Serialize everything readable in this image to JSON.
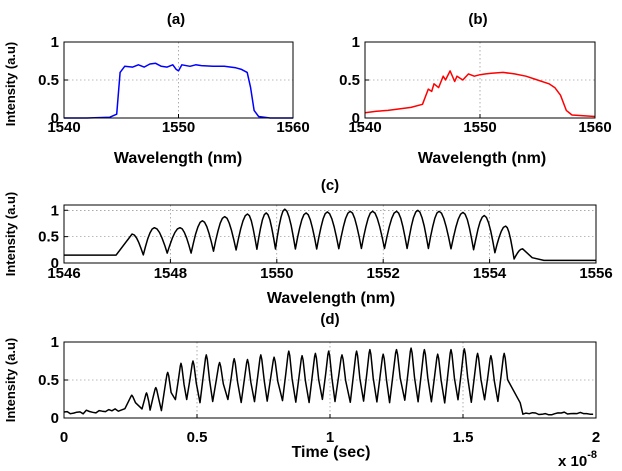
{
  "chart_data": [
    {
      "type": "line",
      "title": "(a)",
      "xlabel": "Wavelength (nm)",
      "ylabel": "Intensity (a.u)",
      "xlim": [
        1540,
        1560
      ],
      "ylim": [
        0,
        1
      ],
      "xticks": [
        "1540",
        "1550",
        "1560"
      ],
      "yticks": [
        "0",
        "0.5",
        "1"
      ],
      "grid": true,
      "color": "#0000ff",
      "series": [
        {
          "x": [
            1540,
            1542,
            1544,
            1544.6,
            1544.9,
            1545.3,
            1546,
            1546.5,
            1547,
            1547.5,
            1548,
            1548.5,
            1549,
            1549.5,
            1549.8,
            1550,
            1550.3,
            1551,
            1551.5,
            1552,
            1553,
            1554,
            1555,
            1555.5,
            1556,
            1556.3,
            1556.6,
            1557,
            1558,
            1560
          ],
          "y": [
            0,
            0,
            0.01,
            0.05,
            0.6,
            0.68,
            0.67,
            0.7,
            0.67,
            0.71,
            0.72,
            0.68,
            0.67,
            0.7,
            0.64,
            0.62,
            0.7,
            0.68,
            0.7,
            0.69,
            0.68,
            0.68,
            0.66,
            0.64,
            0.6,
            0.4,
            0.1,
            0.02,
            0,
            0
          ]
        }
      ]
    },
    {
      "type": "line",
      "title": "(b)",
      "xlabel": "Wavelength (nm)",
      "ylabel": "",
      "xlim": [
        1540,
        1560
      ],
      "ylim": [
        0,
        1
      ],
      "xticks": [
        "1540",
        "1550",
        "1560"
      ],
      "yticks": [
        "0",
        "0.5",
        "1"
      ],
      "grid": true,
      "color": "#ff0000",
      "series": [
        {
          "x": [
            1540,
            1541,
            1542,
            1543,
            1544,
            1545,
            1545.5,
            1545.8,
            1546,
            1546.4,
            1546.8,
            1547,
            1547.4,
            1547.8,
            1548,
            1548.5,
            1549,
            1549.5,
            1550,
            1550.5,
            1551,
            1552,
            1553,
            1554,
            1555,
            1556,
            1556.5,
            1557,
            1557.5,
            1558,
            1560
          ],
          "y": [
            0.07,
            0.09,
            0.1,
            0.12,
            0.14,
            0.18,
            0.38,
            0.35,
            0.45,
            0.4,
            0.55,
            0.5,
            0.62,
            0.48,
            0.55,
            0.5,
            0.58,
            0.55,
            0.57,
            0.58,
            0.59,
            0.6,
            0.58,
            0.55,
            0.5,
            0.45,
            0.4,
            0.3,
            0.1,
            0.04,
            0.02
          ]
        }
      ]
    },
    {
      "type": "line",
      "title": "(c)",
      "xlabel": "Wavelength (nm)",
      "ylabel": "Intensity (a.u)",
      "xlim": [
        1546,
        1556
      ],
      "ylim": [
        0,
        1.1
      ],
      "xticks": [
        "1546",
        "1548",
        "1550",
        "1552",
        "1554",
        "1556"
      ],
      "yticks": [
        "0",
        "0.5",
        "1"
      ],
      "grid": true,
      "color": "#000000",
      "fringes": {
        "peaks": [
          1547.28,
          1547.7,
          1548.18,
          1548.6,
          1549.02,
          1549.45,
          1549.8,
          1550.15,
          1550.55,
          1550.95,
          1551.38,
          1551.8,
          1552.25,
          1552.65,
          1553.05,
          1553.5,
          1553.9,
          1554.3,
          1554.62
        ],
        "peak_values": [
          0.55,
          0.67,
          0.67,
          0.8,
          0.88,
          0.93,
          0.95,
          1.02,
          0.95,
          0.97,
          0.98,
          0.98,
          0.98,
          1.0,
          0.98,
          0.96,
          0.9,
          0.7,
          0.27
        ],
        "baseline": 0.15,
        "floor": 0.06
      }
    },
    {
      "type": "line",
      "title": "(d)",
      "xlabel": "Time (sec)",
      "ylabel": "Intensity (a.u)",
      "xlim": [
        0,
        2
      ],
      "ylim": [
        0,
        1
      ],
      "xticks": [
        "0",
        "0.5",
        "1",
        "1.5",
        "2"
      ],
      "yticks": [
        "0",
        "0.5",
        "1"
      ],
      "x_multiplier_base": "x 10",
      "x_multiplier_exp": "-8",
      "grid": true,
      "color": "#000000",
      "pulses": {
        "centers": [
          0.255,
          0.31,
          0.345,
          0.39,
          0.44,
          0.485,
          0.535,
          0.585,
          0.64,
          0.69,
          0.74,
          0.79,
          0.845,
          0.895,
          0.945,
          0.995,
          1.045,
          1.1,
          1.15,
          1.2,
          1.25,
          1.305,
          1.355,
          1.405,
          1.455,
          1.505,
          1.555,
          1.605,
          1.655
        ],
        "peaks": [
          0.3,
          0.33,
          0.4,
          0.6,
          0.72,
          0.75,
          0.83,
          0.73,
          0.78,
          0.77,
          0.83,
          0.8,
          0.88,
          0.82,
          0.85,
          0.88,
          0.83,
          0.88,
          0.9,
          0.84,
          0.9,
          0.92,
          0.9,
          0.84,
          0.9,
          0.91,
          0.85,
          0.82,
          0.85
        ],
        "noise_floor": 0.08
      }
    }
  ]
}
